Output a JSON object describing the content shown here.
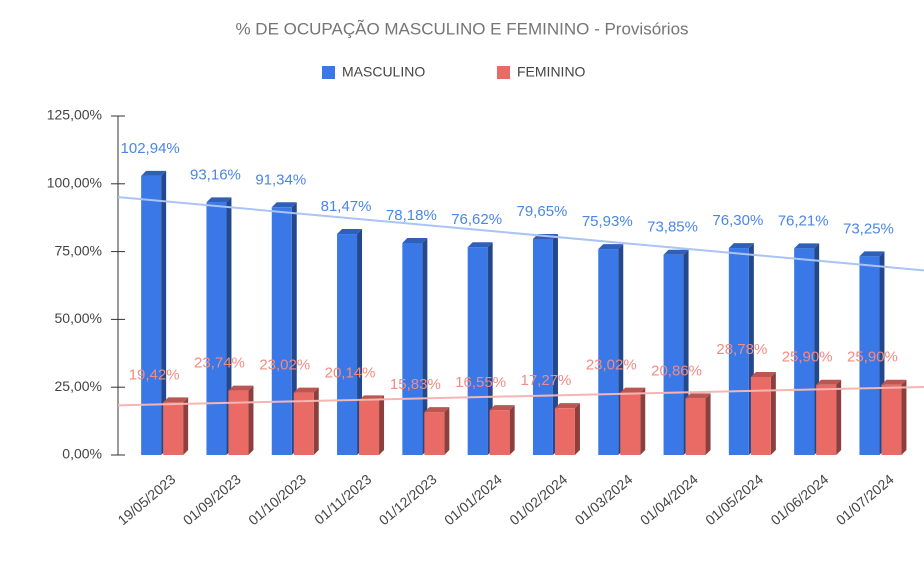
{
  "chart_data": {
    "type": "bar3d",
    "title": "% DE OCUPAÇÃO MASCULINO E FEMININO  - Provisórios",
    "categories": [
      "19/05/2023",
      "01/09/2023",
      "01/10/2023",
      "01/11/2023",
      "01/12/2023",
      "01/01/2024",
      "01/02/2024",
      "01/03/2024",
      "01/04/2024",
      "01/05/2024",
      "01/06/2024",
      "01/07/2024"
    ],
    "series": [
      {
        "name": "MASCULINO",
        "color": "#3b78e7",
        "values": [
          102.94,
          93.16,
          91.34,
          81.47,
          78.18,
          76.62,
          79.65,
          75.93,
          73.85,
          76.3,
          76.21,
          73.25
        ],
        "value_labels": [
          "102,94%",
          "93,16%",
          "91,34%",
          "81,47%",
          "78,18%",
          "76,62%",
          "79,65%",
          "75,93%",
          "73,85%",
          "76,30%",
          "76,21%",
          "73,25%"
        ]
      },
      {
        "name": "FEMININO",
        "color": "#ea6b66",
        "values": [
          19.42,
          23.74,
          23.02,
          20.14,
          15.83,
          16.55,
          17.27,
          23.02,
          20.86,
          28.78,
          25.9,
          25.9
        ],
        "value_labels": [
          "19,42%",
          "23,74%",
          "23,02%",
          "20,14%",
          "15,83%",
          "16,55%",
          "17,27%",
          "23,02%",
          "20,86%",
          "28,78%",
          "25,90%",
          "25,90%"
        ]
      }
    ],
    "ylim": [
      0,
      125
    ],
    "yticks": [
      {
        "value": 0,
        "label": "0,00%"
      },
      {
        "value": 25,
        "label": "25,00%"
      },
      {
        "value": 50,
        "label": "50,00%"
      },
      {
        "value": 75,
        "label": "75,00%"
      },
      {
        "value": 100,
        "label": "100,00%"
      },
      {
        "value": 125,
        "label": "125,00%"
      }
    ],
    "trendline": true,
    "legend": "top"
  }
}
